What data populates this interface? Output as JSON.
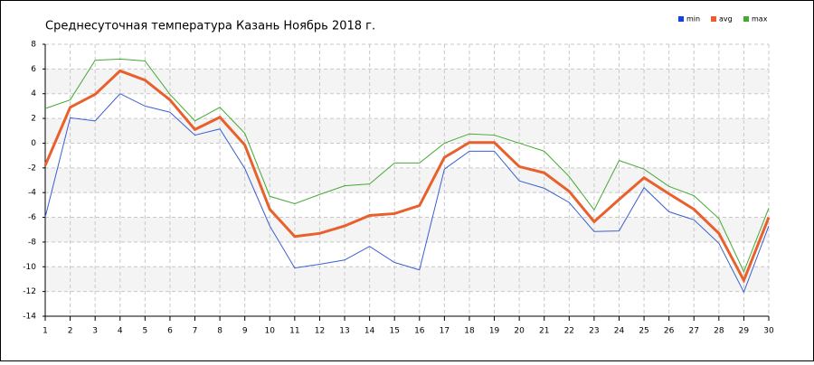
{
  "chart_data": {
    "type": "line",
    "title": "Среднесуточная температура Казань  Ноябрь 2018 г.",
    "x": [
      1,
      2,
      3,
      4,
      5,
      6,
      7,
      8,
      9,
      10,
      11,
      12,
      13,
      14,
      15,
      16,
      17,
      18,
      19,
      20,
      21,
      22,
      23,
      24,
      25,
      26,
      27,
      28,
      29,
      30
    ],
    "series": [
      {
        "name": "min",
        "color": "#3a5fd0",
        "legend_color": "#1144dd",
        "values": [
          -6.0,
          2.05,
          1.8,
          4.0,
          3.0,
          2.5,
          0.65,
          1.15,
          -2.05,
          -6.7,
          -10.1,
          -9.8,
          -9.45,
          -8.35,
          -9.65,
          -10.25,
          -2.1,
          -0.65,
          -0.65,
          -3.05,
          -3.65,
          -4.8,
          -7.15,
          -7.1,
          -3.6,
          -5.55,
          -6.2,
          -8.1,
          -12.05,
          -6.7
        ]
      },
      {
        "name": "avg",
        "color": "#e8602c",
        "legend_color": "#e8602c",
        "values": [
          -1.8,
          2.9,
          3.95,
          5.85,
          5.1,
          3.5,
          1.1,
          2.1,
          -0.15,
          -5.35,
          -7.55,
          -7.3,
          -6.7,
          -5.85,
          -5.7,
          -5.05,
          -1.15,
          0.05,
          0.05,
          -1.9,
          -2.4,
          -3.9,
          -6.35,
          -4.55,
          -2.8,
          -4.1,
          -5.35,
          -7.3,
          -11.1,
          -6.0
        ]
      },
      {
        "name": "max",
        "color": "#44aa33",
        "legend_color": "#44aa33",
        "values": [
          2.8,
          3.5,
          6.7,
          6.8,
          6.65,
          3.95,
          1.8,
          2.9,
          0.8,
          -4.3,
          -4.9,
          -4.15,
          -3.45,
          -3.3,
          -1.6,
          -1.6,
          0,
          0.75,
          0.65,
          0,
          -0.65,
          -2.7,
          -5.4,
          -1.4,
          -2.1,
          -3.5,
          -4.25,
          -6.1,
          -10.4,
          -5.25
        ]
      }
    ],
    "xlim": [
      1,
      30
    ],
    "xticks": [
      1,
      2,
      3,
      4,
      5,
      6,
      7,
      8,
      9,
      10,
      11,
      12,
      13,
      14,
      15,
      16,
      17,
      18,
      19,
      20,
      21,
      22,
      23,
      24,
      25,
      26,
      27,
      28,
      29,
      30
    ],
    "ylim": [
      -14,
      8
    ],
    "yticks": [
      -14,
      -12,
      -10,
      -8,
      -6,
      -4,
      -2,
      0,
      2,
      4,
      6,
      8
    ],
    "grid": true
  }
}
